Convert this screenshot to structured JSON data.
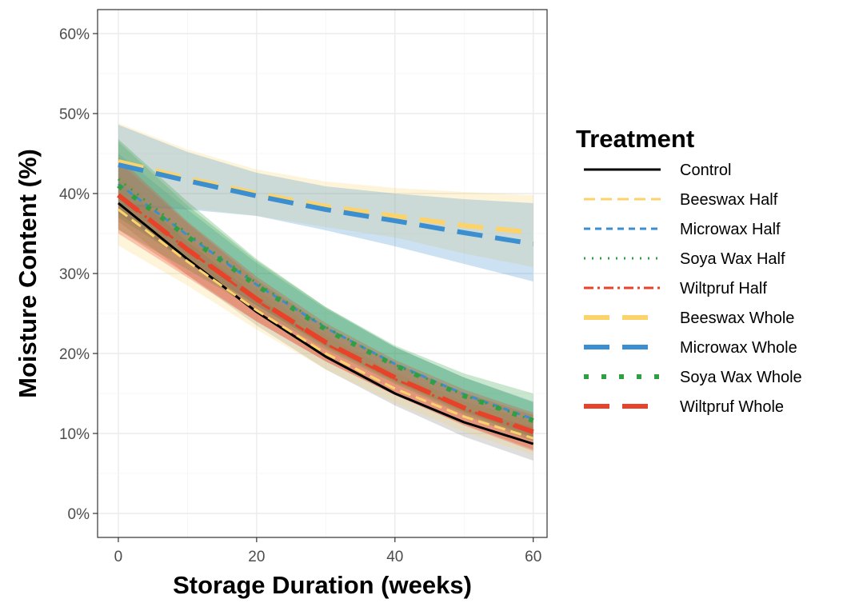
{
  "chart_data": {
    "type": "line",
    "xlabel": "Storage Duration (weeks)",
    "ylabel": "Moisture Content (%)",
    "xlim": [
      -3,
      62
    ],
    "ylim": [
      -3,
      63
    ],
    "x_ticks": [
      0,
      20,
      40,
      60
    ],
    "x_tick_labels": [
      "0",
      "20",
      "40",
      "60"
    ],
    "y_ticks": [
      0,
      10,
      20,
      30,
      40,
      50,
      60
    ],
    "y_tick_labels": [
      "0%",
      "10%",
      "20%",
      "30%",
      "40%",
      "50%",
      "60%"
    ],
    "grid": true,
    "legend": {
      "title": "Treatment",
      "position": "right"
    },
    "x": [
      0,
      10,
      20,
      30,
      40,
      50,
      60
    ],
    "series": [
      {
        "name": "Control",
        "color": "#000000",
        "dash": "solid",
        "width": 3,
        "values": [
          38.8,
          31.8,
          25.2,
          19.6,
          15.0,
          11.4,
          8.7
        ],
        "band_lower": [
          36.5,
          29.8,
          23.5,
          18.0,
          13.5,
          9.6,
          6.6
        ],
        "band_upper": [
          41.5,
          34.0,
          27.2,
          21.3,
          16.6,
          13.0,
          10.8
        ]
      },
      {
        "name": "Beeswax Half",
        "color": "#fcd36b",
        "dash": "medium",
        "width": 3,
        "values": [
          38.0,
          31.5,
          25.4,
          20.0,
          15.6,
          12.1,
          9.4
        ],
        "band_lower": [
          33.5,
          28.5,
          23.0,
          18.0,
          13.8,
          10.2,
          7.3
        ],
        "band_upper": [
          42.5,
          34.5,
          28.0,
          22.3,
          17.6,
          14.0,
          11.5
        ]
      },
      {
        "name": "Microwax Half",
        "color": "#3b8ed0",
        "dash": "short",
        "width": 3,
        "values": [
          41.2,
          34.8,
          28.6,
          23.2,
          18.7,
          14.9,
          11.8
        ],
        "band_lower": [
          37.5,
          31.5,
          26.0,
          21.0,
          16.6,
          12.8,
          9.6
        ],
        "band_upper": [
          45.0,
          38.0,
          31.3,
          25.6,
          20.8,
          17.0,
          14.0
        ]
      },
      {
        "name": "Soya Wax Half",
        "color": "#2ea043",
        "dash": "dotted",
        "width": 3,
        "values": [
          41.8,
          35.0,
          28.8,
          23.3,
          18.6,
          14.8,
          11.6
        ],
        "band_lower": [
          37.0,
          31.5,
          26.0,
          20.8,
          16.4,
          12.6,
          9.4
        ],
        "band_upper": [
          46.5,
          38.5,
          31.6,
          25.8,
          20.8,
          17.0,
          13.9
        ]
      },
      {
        "name": "Wiltpruf Half",
        "color": "#e8432a",
        "dash": "dashdot",
        "width": 3,
        "values": [
          39.8,
          33.0,
          26.6,
          21.2,
          16.8,
          13.1,
          10.1
        ],
        "band_lower": [
          35.5,
          29.8,
          24.0,
          19.0,
          14.8,
          11.1,
          8.0
        ],
        "band_upper": [
          44.0,
          36.3,
          29.2,
          23.4,
          18.8,
          15.1,
          12.3
        ]
      },
      {
        "name": "Beeswax Whole",
        "color": "#fcd36b",
        "dash": "long",
        "width": 6,
        "values": [
          44.0,
          41.9,
          40.0,
          38.4,
          37.2,
          36.0,
          35.1
        ],
        "band_lower": [
          38.8,
          38.2,
          37.2,
          35.8,
          34.5,
          32.5,
          30.8
        ],
        "band_upper": [
          48.8,
          45.5,
          43.0,
          41.5,
          40.7,
          40.2,
          39.8
        ]
      },
      {
        "name": "Microwax Whole",
        "color": "#3b8ed0",
        "dash": "long",
        "width": 6,
        "values": [
          43.6,
          41.6,
          39.7,
          38.0,
          36.6,
          35.1,
          33.7
        ],
        "band_lower": [
          38.4,
          38.0,
          37.2,
          35.4,
          33.4,
          31.2,
          29.0
        ],
        "band_upper": [
          48.6,
          45.2,
          42.6,
          40.9,
          40.0,
          39.3,
          38.8
        ]
      },
      {
        "name": "Soya Wax Whole",
        "color": "#2ea043",
        "dash": "dotted",
        "width": 6,
        "values": [
          41.0,
          34.6,
          28.5,
          23.0,
          18.5,
          14.7,
          11.6
        ],
        "band_lower": [
          35.5,
          30.5,
          25.5,
          20.5,
          16.2,
          12.3,
          9.0
        ],
        "band_upper": [
          46.8,
          39.0,
          31.8,
          25.8,
          21.0,
          17.5,
          15.0
        ]
      },
      {
        "name": "Wiltpruf Whole",
        "color": "#e8432a",
        "dash": "long",
        "width": 6,
        "values": [
          39.8,
          33.0,
          26.8,
          21.4,
          17.0,
          13.2,
          10.2
        ],
        "band_lower": [
          35.0,
          29.5,
          24.0,
          19.0,
          14.8,
          11.0,
          7.8
        ],
        "band_upper": [
          44.5,
          36.5,
          29.6,
          23.8,
          19.2,
          15.5,
          12.6
        ]
      }
    ]
  }
}
